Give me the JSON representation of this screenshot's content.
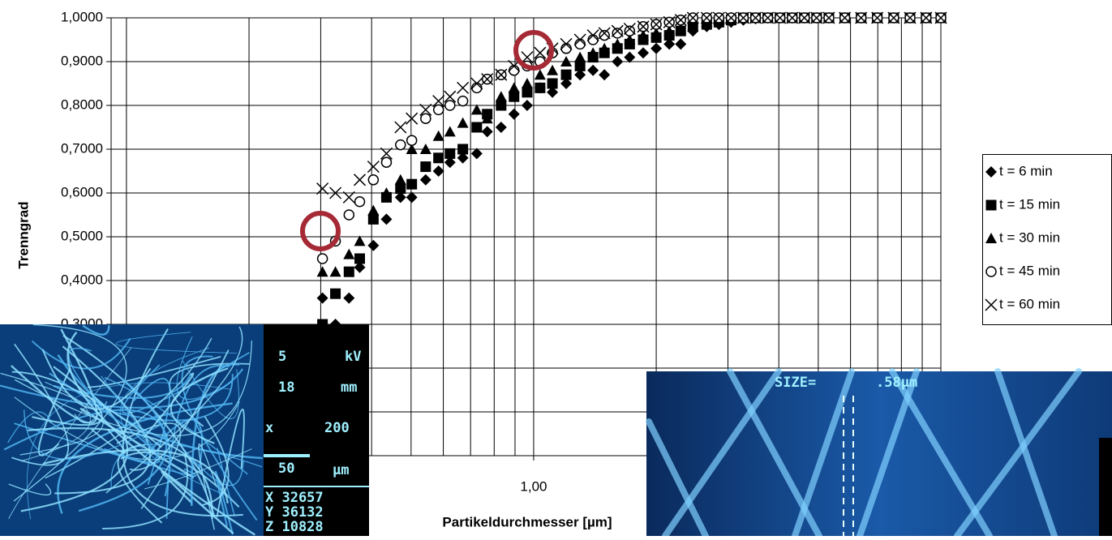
{
  "chart_data": {
    "type": "scatter",
    "ylabel": "Trenngrad",
    "xlabel": "Partikeldurchmesser [µm]",
    "xlim": [
      0.0917,
      10
    ],
    "ylim": [
      0,
      1
    ],
    "xlog": true,
    "grid": true,
    "legend": "right",
    "xticks": [
      {
        "value": 1,
        "label": "1,00"
      }
    ],
    "xminor": [
      0.1,
      0.2,
      0.3,
      0.4,
      0.5,
      0.6,
      0.7,
      0.8,
      0.9,
      2,
      3,
      4,
      5,
      6,
      7,
      8,
      9,
      10
    ],
    "yticks": [
      {
        "value": 0.3,
        "label": "0,3000"
      },
      {
        "value": 0.4,
        "label": "0,4000"
      },
      {
        "value": 0.5,
        "label": "0,5000"
      },
      {
        "value": 0.6,
        "label": "0,6000"
      },
      {
        "value": 0.7,
        "label": "0,7000"
      },
      {
        "value": 0.8,
        "label": "0,8000"
      },
      {
        "value": 0.9,
        "label": "0,9000"
      },
      {
        "value": 1.0,
        "label": "1,0000"
      }
    ],
    "yminor": [
      0,
      0.1,
      0.2
    ],
    "x": [
      0.303,
      0.326,
      0.352,
      0.374,
      0.404,
      0.435,
      0.471,
      0.502,
      0.543,
      0.584,
      0.623,
      0.67,
      0.725,
      0.769,
      0.832,
      0.895,
      0.964,
      1.037,
      1.112,
      1.202,
      1.3,
      1.399,
      1.492,
      1.606,
      1.721,
      1.858,
      2.0,
      2.153,
      2.297,
      2.461,
      2.661,
      2.851,
      3.055,
      3.273,
      3.507,
      3.758,
      4.027,
      4.315,
      4.623,
      4.953,
      5.309,
      5.81,
      6.37,
      6.98,
      7.66,
      8.4,
      9.2,
      10.0
    ],
    "series": [
      {
        "name": "t = 6 min",
        "marker": "diamond",
        "color": "#000000",
        "values": [
          0.36,
          0.3,
          0.36,
          0.43,
          0.48,
          0.54,
          0.59,
          0.59,
          0.63,
          0.65,
          0.67,
          0.68,
          0.69,
          0.74,
          0.75,
          0.78,
          0.8,
          0.84,
          0.83,
          0.85,
          0.87,
          0.88,
          0.87,
          0.9,
          0.91,
          0.92,
          0.93,
          0.94,
          0.94,
          0.97,
          0.98,
          0.985,
          0.99,
          0.995,
          0.998,
          1,
          1,
          1,
          1,
          1,
          1,
          1,
          1,
          1,
          1,
          1,
          1,
          1
        ]
      },
      {
        "name": "t = 15 min",
        "marker": "square",
        "color": "#000000",
        "values": [
          0.3,
          0.37,
          0.42,
          0.45,
          0.54,
          0.59,
          0.61,
          0.62,
          0.66,
          0.68,
          0.69,
          0.7,
          0.75,
          0.78,
          0.8,
          0.82,
          0.83,
          0.84,
          0.85,
          0.87,
          0.89,
          0.91,
          0.92,
          0.93,
          0.94,
          0.95,
          0.955,
          0.96,
          0.97,
          0.98,
          0.985,
          0.99,
          0.995,
          1,
          1,
          1,
          1,
          1,
          1,
          1,
          1,
          1,
          1,
          1,
          1,
          1,
          1,
          1
        ]
      },
      {
        "name": "t = 30 min",
        "marker": "triangle",
        "color": "#000000",
        "values": [
          0.42,
          0.42,
          0.46,
          0.49,
          0.56,
          0.6,
          0.63,
          0.7,
          0.7,
          0.73,
          0.74,
          0.76,
          0.79,
          0.77,
          0.82,
          0.84,
          0.85,
          0.87,
          0.88,
          0.9,
          0.91,
          0.92,
          0.93,
          0.94,
          0.95,
          0.96,
          0.965,
          0.97,
          0.975,
          0.98,
          0.99,
          0.995,
          1,
          1,
          1,
          1,
          1,
          1,
          1,
          1,
          1,
          1,
          1,
          1,
          1,
          1,
          1,
          1
        ]
      },
      {
        "name": "t = 45 min",
        "marker": "circle",
        "color": "#000000",
        "values": [
          0.45,
          0.49,
          0.55,
          0.58,
          0.63,
          0.67,
          0.71,
          0.72,
          0.77,
          0.79,
          0.8,
          0.81,
          0.84,
          0.86,
          0.87,
          0.88,
          0.89,
          0.9,
          0.92,
          0.93,
          0.94,
          0.95,
          0.96,
          0.965,
          0.97,
          0.98,
          0.985,
          0.99,
          0.995,
          1,
          1,
          1,
          1,
          1,
          1,
          1,
          1,
          1,
          1,
          1,
          1,
          1,
          1,
          1,
          1,
          1,
          1,
          1
        ]
      },
      {
        "name": "t = 60 min",
        "marker": "cross",
        "color": "#000000",
        "values": [
          0.61,
          0.6,
          0.59,
          0.63,
          0.66,
          0.69,
          0.75,
          0.77,
          0.79,
          0.81,
          0.82,
          0.84,
          0.85,
          0.86,
          0.87,
          0.89,
          0.91,
          0.92,
          0.93,
          0.94,
          0.95,
          0.96,
          0.965,
          0.97,
          0.975,
          0.98,
          0.985,
          0.99,
          0.995,
          1,
          1,
          1,
          1,
          1,
          1,
          1,
          1,
          1,
          1,
          1,
          1,
          1,
          1,
          1,
          1,
          1,
          1,
          1
        ]
      }
    ]
  },
  "sem_left": {
    "kv": "5",
    "kv_unit": "kV",
    "wd": "18",
    "wd_unit": "mm",
    "mag_x": "x",
    "mag": "200",
    "scale": "50",
    "scale_unit": "µm",
    "x": "X 32657",
    "y": "Y 36132",
    "z": "Z 10828"
  },
  "sem_right": {
    "size_label": "SIZE=",
    "size_value": ".58µm"
  }
}
